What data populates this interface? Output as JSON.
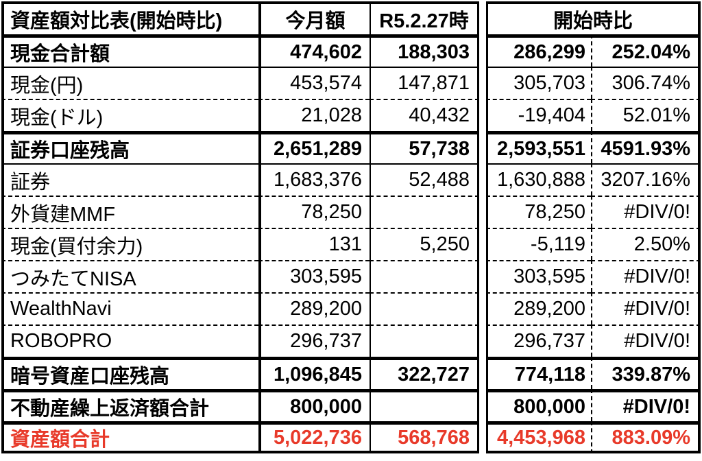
{
  "title": "資産額対比表(開始時比)",
  "columns": {
    "month": "今月額",
    "baseline": "R5.2.27時",
    "comparison_group": "開始時比"
  },
  "colors": {
    "text": "#000000",
    "total_row_red": "#e83a2a",
    "error_triangle_red": "#c2402c",
    "border": "#000000",
    "background": "#ffffff"
  },
  "rows": [
    {
      "label": "現金合計額",
      "month": "474,602",
      "baseline": "188,303",
      "diff": "286,299",
      "pct": "252.04%"
    },
    {
      "label": "現金(円)",
      "month": "453,574",
      "baseline": "147,871",
      "diff": "305,703",
      "pct": "306.74%"
    },
    {
      "label": "現金(ドル)",
      "month": "21,028",
      "baseline": "40,432",
      "diff": "-19,404",
      "pct": "52.01%"
    },
    {
      "label": "証券口座残高",
      "month": "2,651,289",
      "baseline": "57,738",
      "diff": "2,593,551",
      "pct": "4591.93%"
    },
    {
      "label": "証券",
      "month": "1,683,376",
      "baseline": "52,488",
      "diff": "1,630,888",
      "pct": "3207.16%"
    },
    {
      "label": "外貨建MMF",
      "month": "78,250",
      "baseline": "",
      "diff": "78,250",
      "pct": "#DIV/0!"
    },
    {
      "label": "現金(買付余力)",
      "month": "131",
      "baseline": "5,250",
      "diff": "-5,119",
      "pct": "2.50%"
    },
    {
      "label": "つみたてNISA",
      "month": "303,595",
      "baseline": "",
      "diff": "303,595",
      "pct": "#DIV/0!"
    },
    {
      "label": "WealthNavi",
      "month": "289,200",
      "baseline": "",
      "diff": "289,200",
      "pct": "#DIV/0!"
    },
    {
      "label": "ROBOPRO",
      "month": "296,737",
      "baseline": "",
      "diff": "296,737",
      "pct": "#DIV/0!"
    },
    {
      "label": "暗号資産口座残高",
      "month": "1,096,845",
      "baseline": "322,727",
      "diff": "774,118",
      "pct": "339.87%"
    },
    {
      "label": "不動産繰上返済額合計",
      "month": "800,000",
      "baseline": "",
      "diff": "800,000",
      "pct": "#DIV/0!"
    },
    {
      "label": "資産額合計",
      "month": "5,022,736",
      "baseline": "568,768",
      "diff": "4,453,968",
      "pct": "883.09%"
    }
  ]
}
